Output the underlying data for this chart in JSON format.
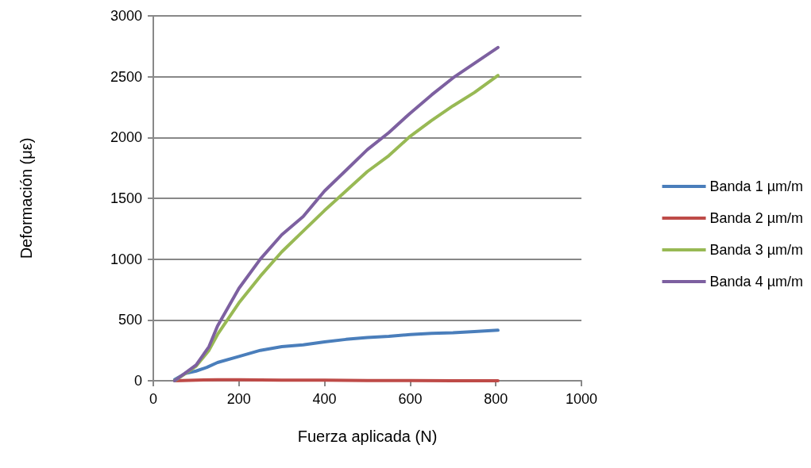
{
  "chart_data": {
    "type": "line",
    "xlabel": "Fuerza aplicada (N)",
    "ylabel": "Deformación (με)",
    "xlim": [
      0,
      1000
    ],
    "xticks": [
      0,
      200,
      400,
      600,
      800,
      1000
    ],
    "ylim": [
      0,
      3000
    ],
    "yticks": [
      0,
      500,
      1000,
      1500,
      2000,
      2500,
      3000
    ],
    "grid": "y",
    "legend": "right",
    "marker": "none",
    "line_style": "solid",
    "series": [
      {
        "name": "Banda 1 µm/m",
        "color": "#4a7ebb",
        "x": [
          50,
          75,
          100,
          125,
          150,
          200,
          250,
          300,
          350,
          400,
          450,
          500,
          550,
          600,
          650,
          700,
          750,
          805
        ],
        "values": [
          10,
          60,
          80,
          110,
          150,
          200,
          250,
          280,
          295,
          320,
          340,
          355,
          365,
          380,
          390,
          395,
          405,
          415
        ]
      },
      {
        "name": "Banda 2 µm/m",
        "color": "#be4b48",
        "x": [
          50,
          100,
          150,
          200,
          300,
          400,
          500,
          600,
          700,
          805
        ],
        "values": [
          0,
          5,
          8,
          8,
          5,
          5,
          2,
          1,
          0,
          0
        ]
      },
      {
        "name": "Banda 3 µm/m",
        "color": "#98b954",
        "x": [
          50,
          100,
          130,
          150,
          200,
          250,
          300,
          350,
          400,
          450,
          500,
          550,
          600,
          650,
          700,
          750,
          805
        ],
        "values": [
          0,
          120,
          250,
          380,
          640,
          860,
          1060,
          1230,
          1400,
          1560,
          1720,
          1850,
          2010,
          2140,
          2260,
          2370,
          2510
        ]
      },
      {
        "name": "Banda 4 µm/m",
        "color": "#7d60a0",
        "x": [
          50,
          100,
          130,
          150,
          200,
          250,
          300,
          350,
          400,
          450,
          500,
          550,
          600,
          650,
          700,
          750,
          805
        ],
        "values": [
          0,
          130,
          280,
          450,
          760,
          1000,
          1200,
          1350,
          1560,
          1730,
          1900,
          2040,
          2200,
          2350,
          2490,
          2610,
          2740
        ]
      }
    ]
  }
}
